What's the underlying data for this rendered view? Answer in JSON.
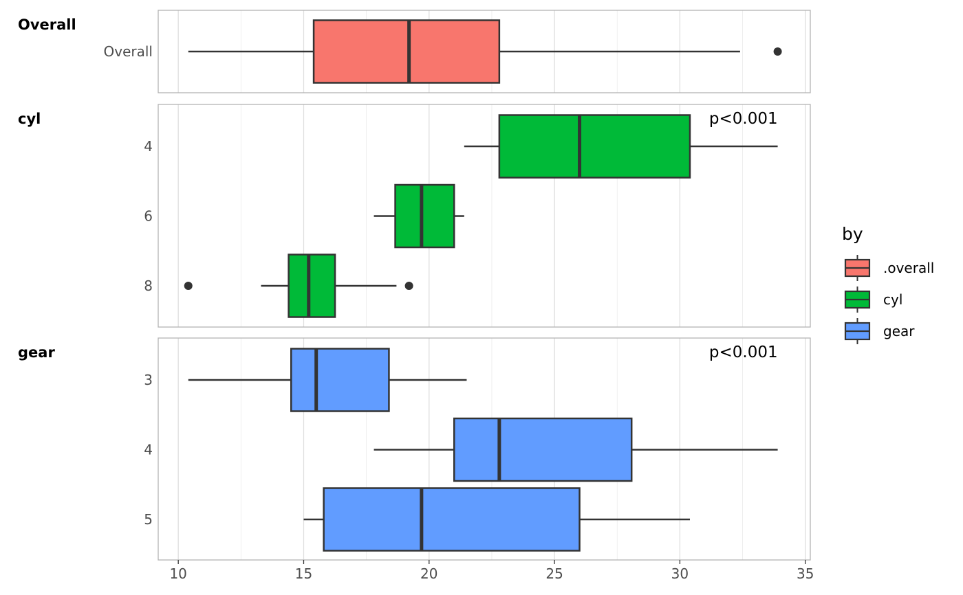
{
  "chart_data": {
    "type": "boxplot",
    "orientation": "horizontal",
    "xlim": [
      9.2,
      35.2
    ],
    "x_ticks": [
      10,
      15,
      20,
      25,
      30,
      35
    ],
    "x_tick_labels": [
      "10",
      "15",
      "20",
      "25",
      "30",
      "35"
    ],
    "grid": true,
    "legend": {
      "title": "by",
      "placement": "right",
      "entries": [
        {
          "key": "overall",
          "label": ".overall",
          "color": "#F8766D"
        },
        {
          "key": "cyl",
          "label": "cyl",
          "color": "#00BA38"
        },
        {
          "key": "gear",
          "label": "gear",
          "color": "#619CFF"
        }
      ]
    },
    "panels": [
      {
        "name": "overall",
        "title": "Overall",
        "pvalue": "",
        "color": "#F8766D",
        "groups": [
          {
            "label": "Overall",
            "whisker_low": 10.4,
            "q1": 15.4,
            "median": 19.2,
            "q3": 22.8,
            "whisker_high": 32.4,
            "outliers": [
              33.9
            ]
          }
        ]
      },
      {
        "name": "cyl",
        "title": "cyl",
        "pvalue": "p<0.001",
        "color": "#00BA38",
        "groups": [
          {
            "label": "4",
            "whisker_low": 21.4,
            "q1": 22.8,
            "median": 26.0,
            "q3": 30.4,
            "whisker_high": 33.9,
            "outliers": []
          },
          {
            "label": "6",
            "whisker_low": 17.8,
            "q1": 18.65,
            "median": 19.7,
            "q3": 21.0,
            "whisker_high": 21.4,
            "outliers": []
          },
          {
            "label": "8",
            "whisker_low": 13.3,
            "q1": 14.4,
            "median": 15.2,
            "q3": 16.25,
            "whisker_high": 18.7,
            "outliers": [
              10.4,
              19.2
            ]
          }
        ]
      },
      {
        "name": "gear",
        "title": "gear",
        "pvalue": "p<0.001",
        "color": "#619CFF",
        "groups": [
          {
            "label": "3",
            "whisker_low": 10.4,
            "q1": 14.5,
            "median": 15.5,
            "q3": 18.4,
            "whisker_high": 21.5,
            "outliers": []
          },
          {
            "label": "4",
            "whisker_low": 17.8,
            "q1": 21.0,
            "median": 22.8,
            "q3": 28.075,
            "whisker_high": 33.9,
            "outliers": []
          },
          {
            "label": "5",
            "whisker_low": 15.0,
            "q1": 15.8,
            "median": 19.7,
            "q3": 26.0,
            "whisker_high": 30.4,
            "outliers": []
          }
        ]
      }
    ]
  }
}
